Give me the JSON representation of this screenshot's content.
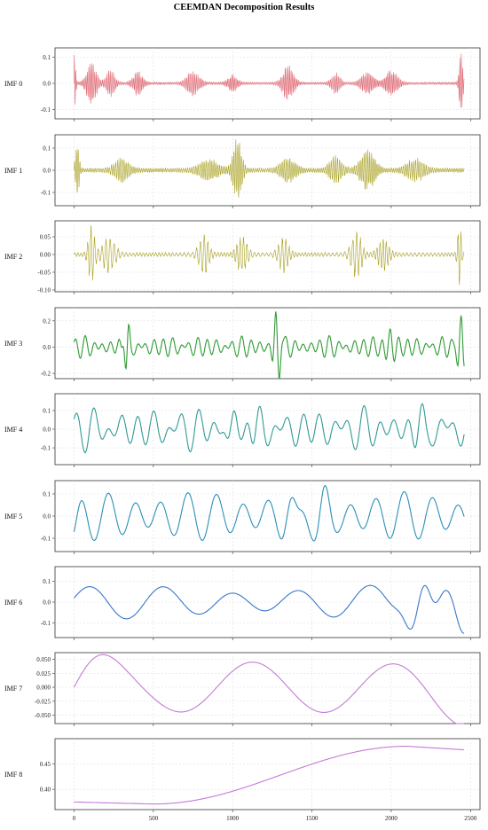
{
  "title": "CEEMDAN Decomposition Results",
  "chart_data": {
    "type": "line",
    "title": "CEEMDAN Decomposition Results",
    "x_ticks": [
      0,
      500,
      1000,
      1500,
      2000,
      2500
    ],
    "xlim": [
      -120,
      2560
    ],
    "x_count": 2460,
    "grid": true,
    "panels": [
      {
        "label": "IMF 0",
        "color": "#e0707a",
        "ylim": [
          -0.135,
          0.135
        ],
        "yticks": [
          0.1,
          0.0,
          -0.1
        ],
        "tick_labels": [
          "0.1",
          "0.0",
          "-0.1"
        ],
        "shape": {
          "kind": "noise",
          "base_amp": 0.005,
          "freq": 260,
          "bursts": [
            [
              0,
              12,
              0.125
            ],
            [
              110,
              40,
              0.085
            ],
            [
              230,
              35,
              0.05
            ],
            [
              400,
              40,
              0.045
            ],
            [
              750,
              50,
              0.05
            ],
            [
              1000,
              40,
              0.03
            ],
            [
              1350,
              45,
              0.07
            ],
            [
              1650,
              35,
              0.04
            ],
            [
              1850,
              50,
              0.045
            ],
            [
              2000,
              50,
              0.05
            ],
            [
              2440,
              15,
              0.125
            ]
          ]
        }
      },
      {
        "label": "IMF 1",
        "color": "#a8a020",
        "ylim": [
          -0.16,
          0.16
        ],
        "yticks": [
          0.1,
          0.0,
          -0.1
        ],
        "tick_labels": [
          "0.1",
          "0.0",
          "-0.1"
        ],
        "shape": {
          "kind": "noise",
          "base_amp": 0.01,
          "freq": 200,
          "bursts": [
            [
              20,
              15,
              0.12
            ],
            [
              300,
              60,
              0.05
            ],
            [
              850,
              80,
              0.045
            ],
            [
              1030,
              35,
              0.14
            ],
            [
              1350,
              60,
              0.055
            ],
            [
              1650,
              50,
              0.06
            ],
            [
              1850,
              60,
              0.09
            ],
            [
              2150,
              70,
              0.05
            ]
          ]
        }
      },
      {
        "label": "IMF 2",
        "color": "#a8a020",
        "ylim": [
          -0.105,
          0.095
        ],
        "yticks": [
          0.05,
          0.0,
          -0.05,
          -0.1
        ],
        "tick_labels": [
          "0.05",
          "0.00",
          "-0.05",
          "-0.10"
        ],
        "shape": {
          "kind": "noise",
          "base_amp": 0.006,
          "freq": 110,
          "bursts": [
            [
              110,
              25,
              0.08
            ],
            [
              220,
              50,
              0.05
            ],
            [
              820,
              40,
              0.06
            ],
            [
              1060,
              40,
              0.055
            ],
            [
              1320,
              40,
              0.05
            ],
            [
              1780,
              40,
              0.07
            ],
            [
              1950,
              40,
              0.05
            ],
            [
              2430,
              15,
              0.09
            ]
          ]
        }
      },
      {
        "label": "IMF 3",
        "color": "#2f9b35",
        "ylim": [
          -0.24,
          0.3
        ],
        "yticks": [
          0.2,
          0.0,
          -0.2
        ],
        "tick_labels": [
          "0.2",
          "0.0",
          "-0.2"
        ],
        "shape": {
          "kind": "wave",
          "periods": [
            55,
            70,
            90
          ],
          "amps": [
            0.045,
            0.03,
            0.015
          ],
          "bursts": [
            [
              330,
              25,
              0.14
            ],
            [
              1280,
              30,
              0.24
            ],
            [
              1990,
              40,
              0.13
            ],
            [
              2440,
              30,
              0.2
            ]
          ]
        }
      },
      {
        "label": "IMF 4",
        "color": "#2f9a95",
        "ylim": [
          -0.19,
          0.19
        ],
        "yticks": [
          0.1,
          0.0,
          -0.1
        ],
        "tick_labels": [
          "0.1",
          "0.0",
          "-0.1"
        ],
        "shape": {
          "kind": "wave",
          "periods": [
            95,
            130,
            170
          ],
          "amps": [
            0.06,
            0.04,
            0.03
          ],
          "bursts": [
            [
              1000,
              60,
              0.12
            ],
            [
              1100,
              60,
              0.1
            ],
            [
              2200,
              60,
              0.08
            ]
          ]
        }
      },
      {
        "label": "IMF 5",
        "color": "#2b8fb8",
        "ylim": [
          -0.16,
          0.16
        ],
        "yticks": [
          0.1,
          0.0,
          -0.1
        ],
        "tick_labels": [
          "0.1",
          "0.0",
          "-0.1"
        ],
        "shape": {
          "kind": "wave",
          "periods": [
            170,
            230
          ],
          "amps": [
            0.08,
            0.03
          ],
          "bursts": [
            [
              0,
              40,
              -0.1
            ],
            [
              1400,
              80,
              0.06
            ],
            [
              1550,
              80,
              0.06
            ]
          ]
        }
      },
      {
        "label": "IMF 6",
        "color": "#3a77c8",
        "ylim": [
          -0.17,
          0.17
        ],
        "yticks": [
          0.1,
          0.0,
          -0.1
        ],
        "tick_labels": [
          "0.1",
          "0.0",
          "-0.1"
        ],
        "shape": {
          "kind": "wave",
          "periods": [
            440,
            610
          ],
          "amps": [
            0.06,
            0.02
          ],
          "bursts": [
            [
              2200,
              120,
              0.09
            ],
            [
              2450,
              60,
              -0.14
            ]
          ]
        }
      },
      {
        "label": "IMF 7",
        "color": "#c57ad8",
        "ylim": [
          -0.065,
          0.062
        ],
        "yticks": [
          0.05,
          0.025,
          0.0,
          -0.025,
          -0.05
        ],
        "tick_labels": [
          "0.050",
          "0.025",
          "0.000",
          "-0.025",
          "-0.050"
        ],
        "shape": {
          "kind": "wave",
          "periods": [
            900
          ],
          "amps": [
            0.045
          ],
          "bursts": [
            [
              0,
              400,
              0.02
            ],
            [
              2450,
              300,
              -0.025
            ]
          ]
        }
      },
      {
        "label": "IMF 8",
        "color": "#c57ad8",
        "ylim": [
          0.36,
          0.5
        ],
        "yticks": [
          0.45,
          0.4
        ],
        "tick_labels": [
          "0.45",
          "0.40"
        ],
        "shape": {
          "kind": "trend",
          "start": 0.375,
          "dip": 0.371,
          "dip_x": 500,
          "peak": 0.485,
          "peak_x": 2100,
          "end": 0.478
        }
      }
    ]
  }
}
